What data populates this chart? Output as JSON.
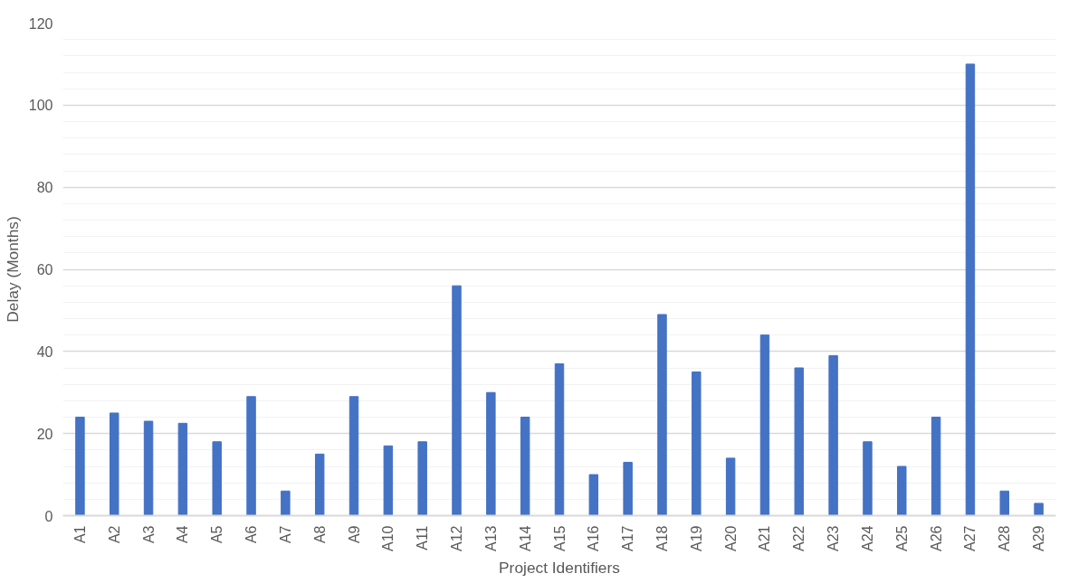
{
  "chart_data": {
    "type": "bar",
    "xlabel": "Project Identifiers",
    "ylabel": "Delay (Months)",
    "categories": [
      "A1",
      "A2",
      "A3",
      "A4",
      "A5",
      "A6",
      "A7",
      "A8",
      "A9",
      "A10",
      "A11",
      "A12",
      "A13",
      "A14",
      "A15",
      "A16",
      "A17",
      "A18",
      "A19",
      "A20",
      "A21",
      "A22",
      "A23",
      "A24",
      "A25",
      "A26",
      "A27",
      "A28",
      "A29"
    ],
    "values": [
      24,
      25,
      23,
      22.5,
      18,
      29,
      6,
      15,
      29,
      17,
      18,
      56,
      30,
      24,
      37,
      10,
      13,
      49,
      35,
      14,
      44,
      36,
      39,
      18,
      12,
      24,
      110,
      6,
      3
    ],
    "color": "#4472c4",
    "ylim": [
      0,
      120
    ],
    "yticks": [
      0,
      20,
      40,
      60,
      80,
      100,
      120
    ],
    "grid": "y"
  }
}
